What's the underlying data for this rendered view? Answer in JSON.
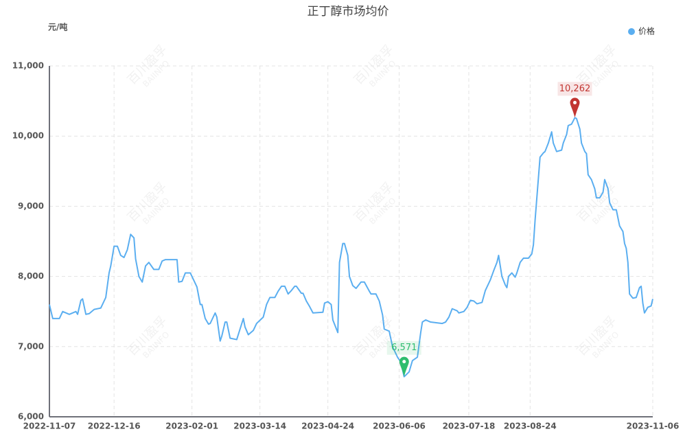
{
  "chart_data": {
    "type": "line",
    "title": "正丁醇市场均价",
    "y_label": "元/吨",
    "watermark": [
      "百川盈孚",
      "BAIINFO"
    ],
    "legend_position": "top-right",
    "grid": true,
    "xlim": [
      "2022-11-07",
      "2023-11-06"
    ],
    "xticks": [
      "2022-11-07",
      "2022-12-16",
      "2023-02-01",
      "2023-03-14",
      "2023-04-24",
      "2023-06-06",
      "2023-07-18",
      "2023-08-24",
      "2023-11-06"
    ],
    "ylim": [
      6000,
      11000
    ],
    "yticks": [
      {
        "value": 6000,
        "label": "6,000"
      },
      {
        "value": 7000,
        "label": "7,000"
      },
      {
        "value": 8000,
        "label": "8,000"
      },
      {
        "value": 9000,
        "label": "9,000"
      },
      {
        "value": 10000,
        "label": "10,000"
      },
      {
        "value": 11000,
        "label": "11,000"
      }
    ],
    "x": [
      "2022-11-07",
      "2022-11-09",
      "2022-11-13",
      "2022-11-15",
      "2022-11-19",
      "2022-11-23",
      "2022-11-24",
      "2022-11-26",
      "2022-11-27",
      "2022-11-29",
      "2022-12-01",
      "2022-12-04",
      "2022-12-08",
      "2022-12-11",
      "2022-12-13",
      "2022-12-14",
      "2022-12-16",
      "2022-12-18",
      "2022-12-20",
      "2022-12-22",
      "2022-12-24",
      "2022-12-26",
      "2022-12-28",
      "2022-12-29",
      "2022-12-31",
      "2023-01-02",
      "2023-01-04",
      "2023-01-06",
      "2023-01-09",
      "2023-01-12",
      "2023-01-14",
      "2023-01-16",
      "2023-01-23",
      "2023-01-24",
      "2023-01-26",
      "2023-01-28",
      "2023-01-31",
      "2023-02-02",
      "2023-02-04",
      "2023-02-06",
      "2023-02-07",
      "2023-02-09",
      "2023-02-11",
      "2023-02-12",
      "2023-02-15",
      "2023-02-16",
      "2023-02-18",
      "2023-02-19",
      "2023-02-21",
      "2023-02-22",
      "2023-02-24",
      "2023-02-28",
      "2023-03-02",
      "2023-03-04",
      "2023-03-05",
      "2023-03-07",
      "2023-03-10",
      "2023-03-12",
      "2023-03-16",
      "2023-03-18",
      "2023-03-20",
      "2023-03-23",
      "2023-03-25",
      "2023-03-27",
      "2023-03-29",
      "2023-03-31",
      "2023-04-02",
      "2023-04-04",
      "2023-04-05",
      "2023-04-08",
      "2023-04-09",
      "2023-04-11",
      "2023-04-13",
      "2023-04-15",
      "2023-04-21",
      "2023-04-22",
      "2023-04-24",
      "2023-04-26",
      "2023-04-27",
      "2023-04-30",
      "2023-05-01",
      "2023-05-03",
      "2023-05-04",
      "2023-05-06",
      "2023-05-07",
      "2023-05-09",
      "2023-05-11",
      "2023-05-14",
      "2023-05-16",
      "2023-05-19",
      "2023-05-20",
      "2023-05-23",
      "2023-05-25",
      "2023-05-27",
      "2023-05-28",
      "2023-05-31",
      "2023-06-02",
      "2023-06-05",
      "2023-06-07",
      "2023-06-09",
      "2023-06-12",
      "2023-06-14",
      "2023-06-17",
      "2023-06-19",
      "2023-06-20",
      "2023-06-22",
      "2023-06-25",
      "2023-07-02",
      "2023-07-04",
      "2023-07-06",
      "2023-07-08",
      "2023-07-11",
      "2023-07-12",
      "2023-07-15",
      "2023-07-17",
      "2023-07-19",
      "2023-07-21",
      "2023-07-23",
      "2023-07-26",
      "2023-07-28",
      "2023-07-31",
      "2023-08-02",
      "2023-08-04",
      "2023-08-05",
      "2023-08-07",
      "2023-08-09",
      "2023-08-10",
      "2023-08-11",
      "2023-08-13",
      "2023-08-15",
      "2023-08-16",
      "2023-08-18",
      "2023-08-20",
      "2023-08-23",
      "2023-08-25",
      "2023-08-26",
      "2023-08-27",
      "2023-08-29",
      "2023-08-30",
      "2023-09-01",
      "2023-09-02",
      "2023-09-04",
      "2023-09-06",
      "2023-09-07",
      "2023-09-09",
      "2023-09-12",
      "2023-09-13",
      "2023-09-15",
      "2023-09-16",
      "2023-09-18",
      "2023-09-20",
      "2023-09-21",
      "2023-09-23",
      "2023-09-24",
      "2023-09-26",
      "2023-09-27",
      "2023-09-28",
      "2023-09-30",
      "2023-10-02",
      "2023-10-03",
      "2023-10-05",
      "2023-10-07",
      "2023-10-08",
      "2023-10-10",
      "2023-10-11",
      "2023-10-13",
      "2023-10-15",
      "2023-10-17",
      "2023-10-19",
      "2023-10-20",
      "2023-10-21",
      "2023-10-22",
      "2023-10-23",
      "2023-10-25",
      "2023-10-27",
      "2023-10-29",
      "2023-10-30",
      "2023-10-31",
      "2023-11-01",
      "2023-11-03",
      "2023-11-05",
      "2023-11-06"
    ],
    "series": [
      {
        "name": "价格",
        "color": "#5aaef0",
        "values": [
          7600,
          7400,
          7400,
          7500,
          7460,
          7500,
          7460,
          7660,
          7680,
          7460,
          7470,
          7530,
          7550,
          7700,
          8050,
          8150,
          8430,
          8430,
          8300,
          8270,
          8380,
          8600,
          8550,
          8250,
          8000,
          7920,
          8150,
          8200,
          8100,
          8100,
          8220,
          8240,
          8240,
          7920,
          7930,
          8050,
          8050,
          7950,
          7850,
          7600,
          7600,
          7400,
          7320,
          7330,
          7480,
          7420,
          7080,
          7150,
          7350,
          7350,
          7120,
          7100,
          7250,
          7400,
          7280,
          7170,
          7230,
          7330,
          7420,
          7600,
          7700,
          7700,
          7790,
          7860,
          7860,
          7750,
          7800,
          7860,
          7860,
          7760,
          7760,
          7650,
          7570,
          7480,
          7490,
          7620,
          7640,
          7600,
          7380,
          7200,
          8200,
          8470,
          8470,
          8300,
          8000,
          7870,
          7830,
          7920,
          7920,
          7790,
          7750,
          7750,
          7650,
          7450,
          7250,
          7220,
          7000,
          6850,
          6780,
          6571,
          6640,
          6800,
          6850,
          7200,
          7350,
          7380,
          7350,
          7330,
          7350,
          7420,
          7540,
          7510,
          7480,
          7500,
          7560,
          7660,
          7650,
          7610,
          7630,
          7800,
          7950,
          8080,
          8200,
          8300,
          8000,
          7880,
          7840,
          8000,
          8050,
          7990,
          8050,
          8200,
          8260,
          8260,
          8320,
          8450,
          8800,
          9400,
          9700,
          9760,
          9780,
          9900,
          10060,
          9900,
          9780,
          9800,
          9900,
          10020,
          10150,
          10170,
          10262,
          10250,
          10100,
          9900,
          9780,
          9750,
          9450,
          9380,
          9250,
          9120,
          9120,
          9200,
          9380,
          9250,
          9050,
          8950,
          8950,
          8720,
          8640,
          8470,
          8400,
          8200,
          7750,
          7690,
          7700,
          7840,
          7860,
          7620,
          7480,
          7560,
          7580,
          7680
        ]
      }
    ],
    "annotations": [
      {
        "x": "2023-09-20",
        "value": 10262,
        "label": "10,262",
        "color": "#c23531"
      },
      {
        "x": "2023-06-09",
        "value": 6571,
        "label": "6,571",
        "color": "#2ebd6e"
      }
    ]
  }
}
